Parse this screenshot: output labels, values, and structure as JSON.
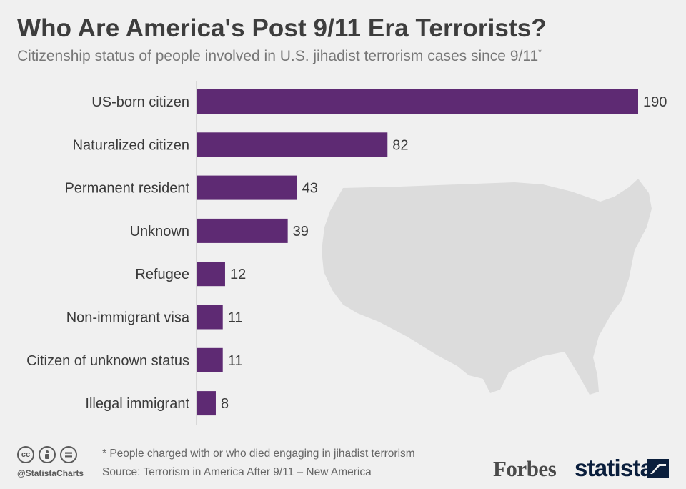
{
  "title": "Who Are America's Post 9/11 Era Terrorists?",
  "subtitle": "Citizenship status of people involved in U.S. jihadist terrorism cases since 9/11",
  "subtitle_marker": "*",
  "footnote": "* People charged with or who died engaging in jihadist terrorism",
  "source": "Source: Terrorism in America After 9/11 – New America",
  "handle": "@StatistaCharts",
  "brand_forbes": "Forbes",
  "brand_statista": "statista",
  "colors": {
    "bar": "#5e2a73",
    "map": "#dcdcdc",
    "axis": "#cfcfcf",
    "background": "#f0f0f0"
  },
  "chart_data": {
    "type": "bar",
    "orientation": "horizontal",
    "categories": [
      "US-born citizen",
      "Naturalized citizen",
      "Permanent resident",
      "Unknown",
      "Refugee",
      "Non-immigrant visa",
      "Citizen of unknown status",
      "Illegal immigrant"
    ],
    "values": [
      190,
      82,
      43,
      39,
      12,
      11,
      11,
      8
    ],
    "xlim": [
      0,
      190
    ],
    "grid": false,
    "legend": "none",
    "data_labels": true
  }
}
